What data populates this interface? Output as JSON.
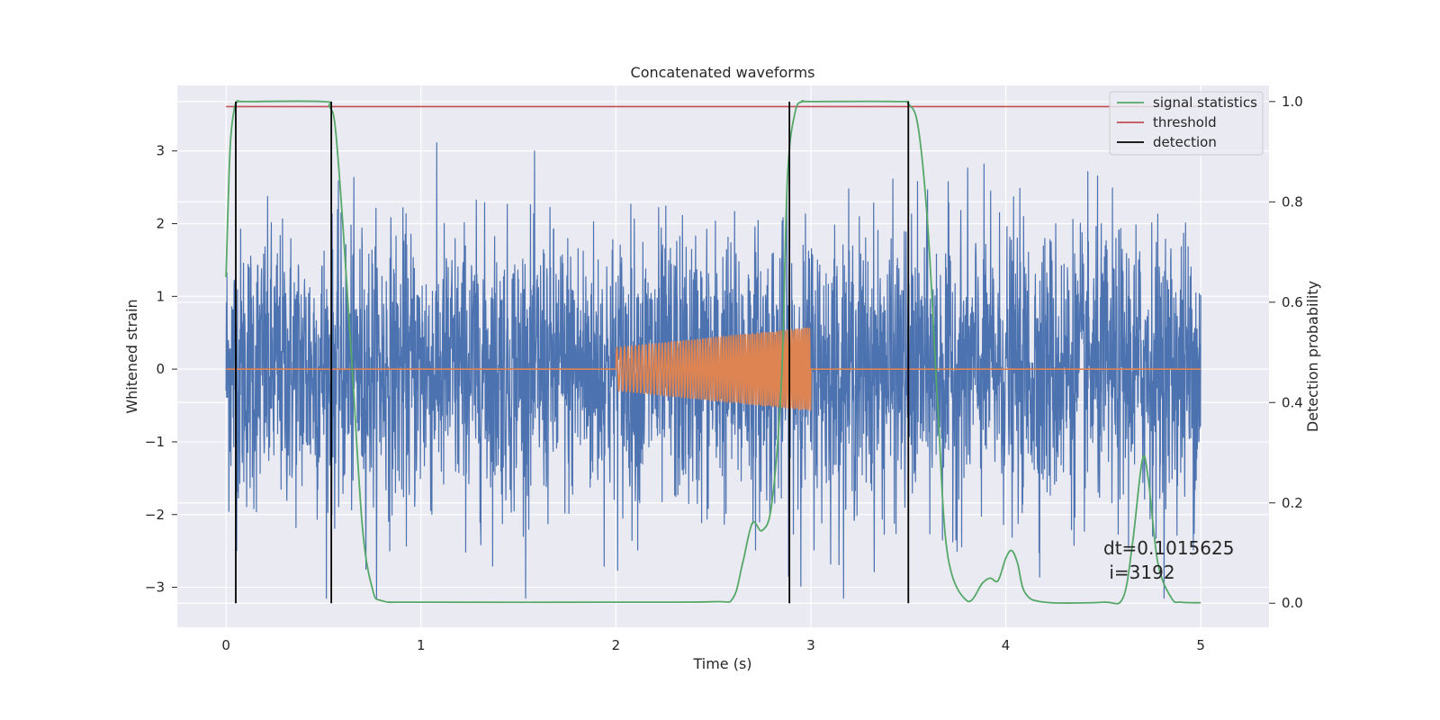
{
  "chart_data": {
    "type": "line",
    "title": "Concatenated waveforms",
    "xlabel": "Time (s)",
    "ylabel": "Whitened strain",
    "y2label": "Detection probability",
    "xlim": [
      -0.25,
      5.35
    ],
    "ylim": [
      -3.55,
      3.9
    ],
    "y2lim": [
      -0.048,
      1.032
    ],
    "x_ticks": [
      "0",
      "1",
      "2",
      "3",
      "4",
      "5"
    ],
    "y_ticks": [
      "3",
      "2",
      "1",
      "0",
      "−1",
      "−2",
      "−3"
    ],
    "y2_ticks": [
      "1.0",
      "0.8",
      "0.6",
      "0.4",
      "0.2",
      "0.0"
    ],
    "grid": true,
    "legend_position": "top-right",
    "series": [
      {
        "name": "",
        "axis": "left",
        "color": "#4c72b0",
        "description": "noisy whitened strain",
        "x_range": [
          0,
          5
        ],
        "amplitude_core": 1.0,
        "amplitude_peak": 3.5
      },
      {
        "name": "",
        "axis": "left",
        "color": "#dd8452",
        "description": "injected chirp waveform",
        "flat_value": 0,
        "chirp_x_range": [
          2.0,
          3.0
        ],
        "chirp_amplitude": [
          0.3,
          0.58
        ]
      },
      {
        "name": "signal statistics",
        "axis": "right",
        "color": "#55a868",
        "x": [
          0,
          0.02,
          0.04,
          0.06,
          0.1,
          0.5,
          0.53,
          0.56,
          0.6,
          0.65,
          0.7,
          0.75,
          0.8,
          1.0,
          2.0,
          2.5,
          2.6,
          2.65,
          2.7,
          2.75,
          2.8,
          2.85,
          2.88,
          2.92,
          2.96,
          3.0,
          3.45,
          3.5,
          3.55,
          3.6,
          3.65,
          3.7,
          3.8,
          3.88,
          3.92,
          3.96,
          4.0,
          4.03,
          4.06,
          4.1,
          4.2,
          4.5,
          4.6,
          4.65,
          4.7,
          4.73,
          4.78,
          4.85,
          4.9,
          5.0
        ],
        "y": [
          0.65,
          0.9,
          0.98,
          1.0,
          1.0,
          1.0,
          0.99,
          0.95,
          0.75,
          0.45,
          0.15,
          0.03,
          0.005,
          0.002,
          0.002,
          0.003,
          0.01,
          0.08,
          0.16,
          0.145,
          0.2,
          0.45,
          0.85,
          0.98,
          1.0,
          1.0,
          1.0,
          0.995,
          0.95,
          0.75,
          0.4,
          0.1,
          0.005,
          0.04,
          0.05,
          0.045,
          0.09,
          0.105,
          0.08,
          0.02,
          0.002,
          0.002,
          0.01,
          0.12,
          0.285,
          0.25,
          0.08,
          0.01,
          0.002,
          0.001
        ]
      },
      {
        "name": "threshold",
        "axis": "right",
        "color": "#c44e52",
        "value": 0.99,
        "x_range": [
          0,
          5
        ]
      },
      {
        "name": "detection",
        "axis": "right",
        "color": "#000000",
        "x": [
          0.05,
          0.54,
          2.89,
          3.5
        ],
        "y_range": [
          0.0,
          1.0
        ]
      }
    ],
    "annotation": [
      "dt=0.1015625",
      " i=3192"
    ]
  }
}
